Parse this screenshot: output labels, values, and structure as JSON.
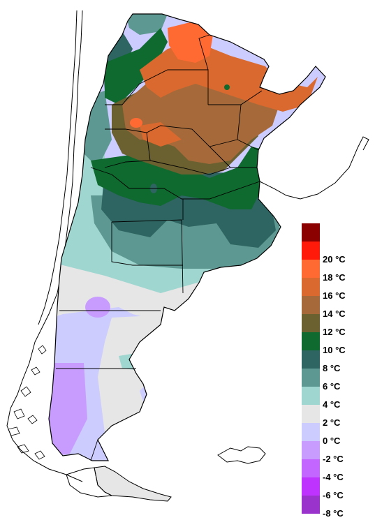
{
  "legend": {
    "items": [
      {
        "label": "",
        "color": "#8B0000"
      },
      {
        "label": "20 °C",
        "color": "#FF1A0A"
      },
      {
        "label": "18 °C",
        "color": "#FF6A33"
      },
      {
        "label": "16 °C",
        "color": "#D9692E"
      },
      {
        "label": "14 °C",
        "color": "#A66A3A"
      },
      {
        "label": "12 °C",
        "color": "#6B6030"
      },
      {
        "label": "10 °C",
        "color": "#0E6A2E"
      },
      {
        "label": "8 °C",
        "color": "#2E6461"
      },
      {
        "label": "6 °C",
        "color": "#5E9892"
      },
      {
        "label": "4 °C",
        "color": "#9FD6CF"
      },
      {
        "label": "2 °C",
        "color": "#E6E6E6"
      },
      {
        "label": "0 °C",
        "color": "#CCCCFF"
      },
      {
        "label": "-2 °C",
        "color": "#C89CFF"
      },
      {
        "label": "-4 °C",
        "color": "#C266FF"
      },
      {
        "label": "-6 °C",
        "color": "#BF33FF"
      },
      {
        "label": "-8 °C",
        "color": "#9933CC"
      }
    ]
  }
}
